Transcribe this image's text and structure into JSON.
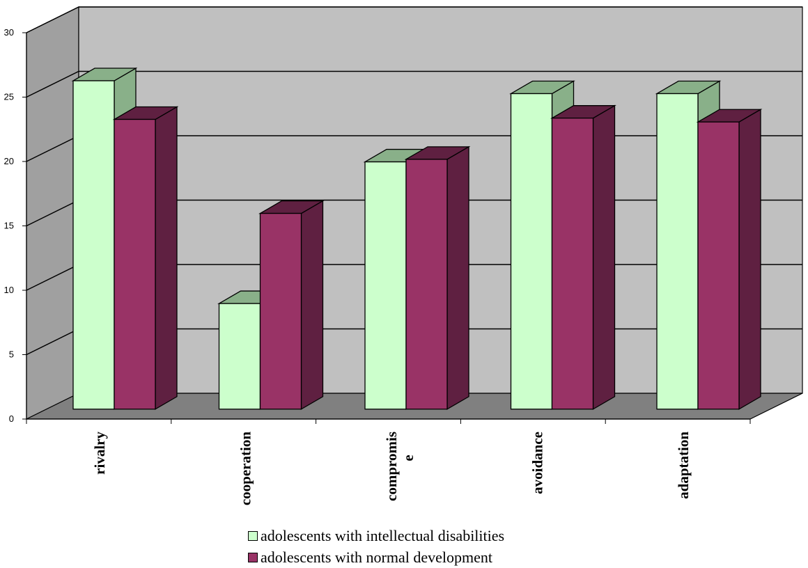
{
  "chart_data": {
    "type": "bar",
    "categories": [
      "rivalry",
      "cooperation",
      "compromise",
      "avoidance",
      "adaptation"
    ],
    "category_display_lines": [
      [
        "rivalry"
      ],
      [
        "cooperation"
      ],
      [
        "compromis",
        "e"
      ],
      [
        "avoidance"
      ],
      [
        "adaptation"
      ]
    ],
    "series": [
      {
        "name": "adolescents with intellectual disabilities",
        "values": [
          25.5,
          8.2,
          19.2,
          24.5,
          24.5
        ],
        "color": "#ccffcc"
      },
      {
        "name": "adolescents with normal development",
        "values": [
          22.5,
          15.2,
          19.4,
          22.6,
          22.3
        ],
        "color": "#993366"
      }
    ],
    "y_ticks": [
      "0",
      "5",
      "10",
      "15",
      "20",
      "25",
      "30"
    ],
    "ylim": [
      0,
      30
    ],
    "grid": true,
    "three_d": true,
    "legend_position": "bottom",
    "colors": {
      "back_wall": "#c0c0c0",
      "side_wall": "#a0a0a0",
      "floor": "#808080",
      "series1_side": "#89b089",
      "series2_side": "#5f2041"
    }
  }
}
